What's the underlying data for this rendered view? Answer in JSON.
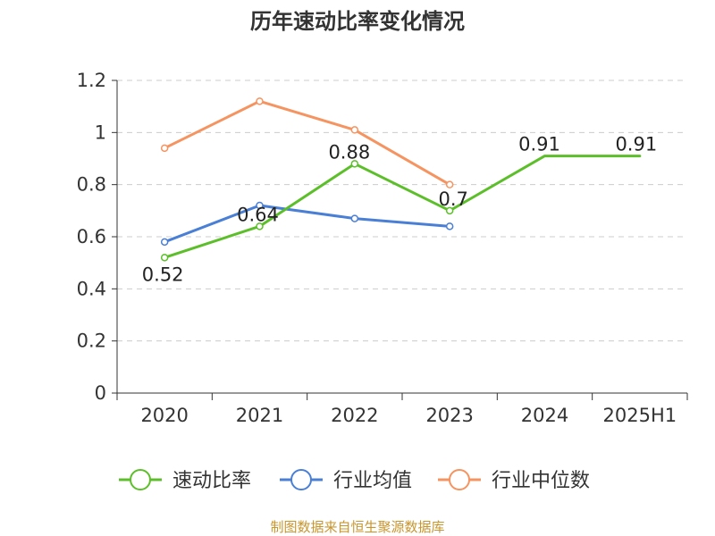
{
  "chart_data": {
    "type": "line",
    "title": "历年速动比率变化情况",
    "xlabel": "",
    "ylabel": "",
    "categories": [
      "2020",
      "2021",
      "2022",
      "2023",
      "2024",
      "2025H1"
    ],
    "ylim": [
      0,
      1.2
    ],
    "yticks": [
      "0",
      "0.2",
      "0.4",
      "0.6",
      "0.8",
      "1",
      "1.2"
    ],
    "grid": true,
    "legend_position": "bottom",
    "series": [
      {
        "name": "速动比率",
        "color": "#5cbf2a",
        "values": [
          0.52,
          0.64,
          0.88,
          0.7,
          0.91,
          0.91
        ],
        "labels": [
          "0.52",
          "0.64",
          "0.88",
          "0.7",
          "0.91",
          "0.91"
        ],
        "show_markers": [
          true,
          true,
          true,
          true,
          false,
          false
        ]
      },
      {
        "name": "行业均值",
        "color": "#4a7fd6",
        "values": [
          0.58,
          0.72,
          0.67,
          0.64,
          null,
          null
        ],
        "labels": [],
        "show_markers": [
          true,
          true,
          true,
          true,
          false,
          false
        ]
      },
      {
        "name": "行业中位数",
        "color": "#f59460",
        "values": [
          0.94,
          1.12,
          1.01,
          0.8,
          null,
          null
        ],
        "labels": [],
        "show_markers": [
          true,
          true,
          true,
          true,
          false,
          false
        ]
      }
    ]
  },
  "source": {
    "text": "制图数据来自恒生聚源数据库",
    "color": "#c8962e"
  }
}
